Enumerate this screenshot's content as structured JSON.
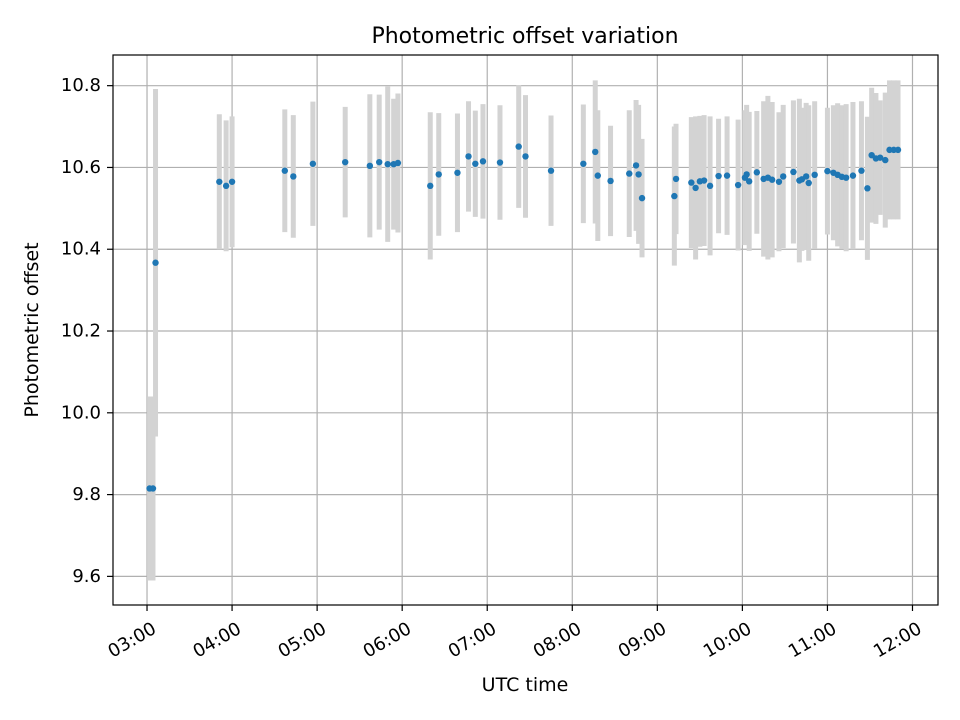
{
  "chart_data": {
    "type": "scatter",
    "title": "Photometric offset variation",
    "xlabel": "UTC time",
    "ylabel": "Photometric offset",
    "x_unit": "hours (UTC)",
    "xlim": [
      2.6,
      12.3
    ],
    "ylim": [
      9.53,
      10.875
    ],
    "x_ticks": [
      3,
      4,
      5,
      6,
      7,
      8,
      9,
      10,
      11,
      12
    ],
    "x_tick_labels": [
      "03:00",
      "04:00",
      "05:00",
      "06:00",
      "07:00",
      "08:00",
      "09:00",
      "10:00",
      "11:00",
      "12:00"
    ],
    "y_ticks": [
      9.6,
      9.8,
      10.0,
      10.2,
      10.4,
      10.6,
      10.8
    ],
    "y_tick_labels": [
      "9.6",
      "9.8",
      "10.0",
      "10.2",
      "10.4",
      "10.6",
      "10.8"
    ],
    "grid": true,
    "legend": false,
    "marker_color": "#1f77b4",
    "errorbar_color": "#d3d3d3",
    "series": [
      {
        "x": [
          3.03,
          3.07,
          3.1,
          3.85,
          3.93,
          4.0,
          4.62,
          4.72,
          4.95,
          5.33,
          5.62,
          5.73,
          5.83,
          5.9,
          5.95,
          6.33,
          6.43,
          6.65,
          6.78,
          6.86,
          6.95,
          7.15,
          7.37,
          7.45,
          7.75,
          8.13,
          8.27,
          8.3,
          8.45,
          8.67,
          8.75,
          8.78,
          8.82,
          9.2,
          9.22,
          9.4,
          9.45,
          9.5,
          9.55,
          9.62,
          9.72,
          9.82,
          9.95,
          10.03,
          10.05,
          10.08,
          10.17,
          10.25,
          10.3,
          10.35,
          10.43,
          10.48,
          10.6,
          10.67,
          10.7,
          10.75,
          10.78,
          10.85,
          11.0,
          11.07,
          11.12,
          11.17,
          11.22,
          11.3,
          11.4,
          11.47,
          11.52,
          11.57,
          11.62,
          11.68,
          11.73,
          11.78,
          11.83
        ],
        "y": [
          9.815,
          9.815,
          10.367,
          10.565,
          10.555,
          10.565,
          10.592,
          10.578,
          10.609,
          10.613,
          10.604,
          10.613,
          10.608,
          10.608,
          10.611,
          10.555,
          10.583,
          10.587,
          10.627,
          10.609,
          10.615,
          10.612,
          10.651,
          10.627,
          10.592,
          10.609,
          10.638,
          10.58,
          10.567,
          10.585,
          10.605,
          10.583,
          10.525,
          10.53,
          10.572,
          10.563,
          10.55,
          10.566,
          10.568,
          10.555,
          10.579,
          10.58,
          10.557,
          10.575,
          10.583,
          10.566,
          10.588,
          10.572,
          10.575,
          10.57,
          10.565,
          10.578,
          10.589,
          10.568,
          10.571,
          10.578,
          10.562,
          10.582,
          10.591,
          10.587,
          10.582,
          10.577,
          10.575,
          10.58,
          10.592,
          10.549,
          10.63,
          10.622,
          10.624,
          10.618,
          10.643,
          10.643,
          10.643
        ],
        "yerr": [
          0.225,
          0.225,
          0.425,
          0.165,
          0.16,
          0.16,
          0.15,
          0.15,
          0.152,
          0.135,
          0.175,
          0.165,
          0.19,
          0.16,
          0.17,
          0.18,
          0.15,
          0.145,
          0.135,
          0.13,
          0.14,
          0.14,
          0.15,
          0.15,
          0.135,
          0.145,
          0.175,
          0.16,
          0.135,
          0.155,
          0.16,
          0.17,
          0.145,
          0.17,
          0.135,
          0.16,
          0.175,
          0.16,
          0.16,
          0.17,
          0.14,
          0.145,
          0.16,
          0.165,
          0.17,
          0.17,
          0.15,
          0.19,
          0.2,
          0.19,
          0.17,
          0.175,
          0.175,
          0.2,
          0.175,
          0.18,
          0.19,
          0.18,
          0.155,
          0.165,
          0.175,
          0.175,
          0.18,
          0.18,
          0.17,
          0.175,
          0.165,
          0.16,
          0.14,
          0.165,
          0.17,
          0.17,
          0.17
        ]
      }
    ]
  }
}
